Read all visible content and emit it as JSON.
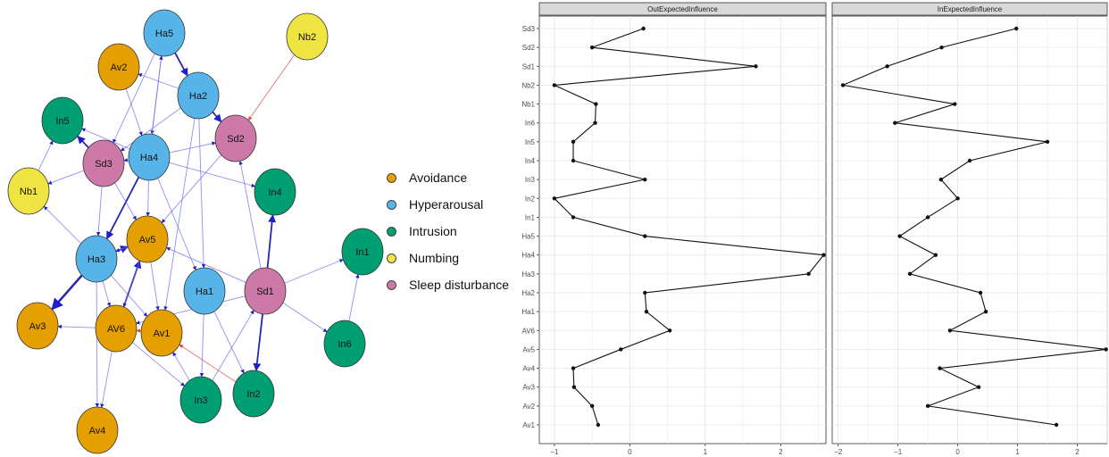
{
  "network": {
    "nodes": [
      {
        "id": "Ha5",
        "group": "Hyperarousal"
      },
      {
        "id": "Nb2",
        "group": "Numbing"
      },
      {
        "id": "Av2",
        "group": "Avoidance"
      },
      {
        "id": "Ha2",
        "group": "Hyperarousal"
      },
      {
        "id": "In5",
        "group": "Intrusion"
      },
      {
        "id": "Sd2",
        "group": "Sleep disturbance"
      },
      {
        "id": "Sd3",
        "group": "Sleep disturbance"
      },
      {
        "id": "Ha4",
        "group": "Hyperarousal"
      },
      {
        "id": "Nb1",
        "group": "Numbing"
      },
      {
        "id": "In4",
        "group": "Intrusion"
      },
      {
        "id": "Av5",
        "group": "Avoidance"
      },
      {
        "id": "Ha3",
        "group": "Hyperarousal"
      },
      {
        "id": "In1",
        "group": "Intrusion"
      },
      {
        "id": "Ha1",
        "group": "Hyperarousal"
      },
      {
        "id": "Sd1",
        "group": "Sleep disturbance"
      },
      {
        "id": "Av3",
        "group": "Avoidance"
      },
      {
        "id": "AV6",
        "group": "Avoidance"
      },
      {
        "id": "Av1",
        "group": "Avoidance"
      },
      {
        "id": "In6",
        "group": "Intrusion"
      },
      {
        "id": "In3",
        "group": "Intrusion"
      },
      {
        "id": "In2",
        "group": "Intrusion"
      },
      {
        "id": "Av4",
        "group": "Avoidance"
      }
    ],
    "edges": [
      {
        "from": "Nb2",
        "to": "Sd2",
        "w": 1,
        "neg": true
      },
      {
        "from": "In2",
        "to": "Av1",
        "w": 1,
        "neg": true
      },
      {
        "from": "Av1",
        "to": "AV6",
        "w": 1,
        "neg": true
      },
      {
        "from": "Ha5",
        "to": "Ha2",
        "w": 2
      },
      {
        "from": "Ha2",
        "to": "Sd2",
        "w": 2
      },
      {
        "from": "Ha5",
        "to": "Ha4",
        "w": 1
      },
      {
        "from": "Ha4",
        "to": "Ha5",
        "w": 1
      },
      {
        "from": "Ha5",
        "to": "Sd3",
        "w": 1
      },
      {
        "from": "Av2",
        "to": "Ha4",
        "w": 1
      },
      {
        "from": "Ha2",
        "to": "Av2",
        "w": 1
      },
      {
        "from": "Ha2",
        "to": "Sd3",
        "w": 1
      },
      {
        "from": "Ha2",
        "to": "Ha1",
        "w": 1
      },
      {
        "from": "Sd3",
        "to": "In5",
        "w": 2
      },
      {
        "from": "Ha4",
        "to": "In5",
        "w": 1
      },
      {
        "from": "Sd3",
        "to": "Nb1",
        "w": 1
      },
      {
        "from": "Nb1",
        "to": "In5",
        "w": 1
      },
      {
        "from": "Ha4",
        "to": "Sd3",
        "w": 1
      },
      {
        "from": "Ha4",
        "to": "Sd2",
        "w": 1
      },
      {
        "from": "Ha4",
        "to": "In4",
        "w": 1
      },
      {
        "from": "Ha4",
        "to": "Ha3",
        "w": 2
      },
      {
        "from": "Ha4",
        "to": "Av5",
        "w": 1
      },
      {
        "from": "Ha4",
        "to": "Ha1",
        "w": 1
      },
      {
        "from": "Sd2",
        "to": "Av5",
        "w": 1
      },
      {
        "from": "Sd1",
        "to": "Sd2",
        "w": 1
      },
      {
        "from": "Sd1",
        "to": "In4",
        "w": 2
      },
      {
        "from": "Sd1",
        "to": "In1",
        "w": 1
      },
      {
        "from": "Sd1",
        "to": "In6",
        "w": 1
      },
      {
        "from": "Sd1",
        "to": "In2",
        "w": 2
      },
      {
        "from": "Sd1",
        "to": "Av5",
        "w": 1
      },
      {
        "from": "Sd1",
        "to": "AV6",
        "w": 1
      },
      {
        "from": "In6",
        "to": "In1",
        "w": 1
      },
      {
        "from": "Ha3",
        "to": "Nb1",
        "w": 1
      },
      {
        "from": "Ha3",
        "to": "Av3",
        "w": 3
      },
      {
        "from": "Ha3",
        "to": "Av4",
        "w": 1
      },
      {
        "from": "Ha3",
        "to": "Av5",
        "w": 2
      },
      {
        "from": "Ha3",
        "to": "AV6",
        "w": 1
      },
      {
        "from": "Ha3",
        "to": "Av1",
        "w": 1
      },
      {
        "from": "Sd3",
        "to": "Ha3",
        "w": 1
      },
      {
        "from": "Sd3",
        "to": "Av5",
        "w": 1
      },
      {
        "from": "Av5",
        "to": "Ha3",
        "w": 1
      },
      {
        "from": "Av5",
        "to": "Av1",
        "w": 1
      },
      {
        "from": "AV6",
        "to": "Av5",
        "w": 2
      },
      {
        "from": "AV6",
        "to": "Av3",
        "w": 1
      },
      {
        "from": "AV6",
        "to": "Av4",
        "w": 1
      },
      {
        "from": "AV6",
        "to": "In3",
        "w": 1
      },
      {
        "from": "Ha1",
        "to": "In3",
        "w": 1
      },
      {
        "from": "Ha1",
        "to": "In2",
        "w": 1
      },
      {
        "from": "In3",
        "to": "Sd1",
        "w": 1
      },
      {
        "from": "In3",
        "to": "Av1",
        "w": 1
      },
      {
        "from": "Ha2",
        "to": "Av1",
        "w": 1
      },
      {
        "from": "Av5",
        "to": "AV6",
        "w": 1
      }
    ]
  },
  "legend": {
    "items": [
      {
        "label": "Avoidance",
        "color": "#e69f00"
      },
      {
        "label": "Hyperarousal",
        "color": "#56b4e9"
      },
      {
        "label": "Intrusion",
        "color": "#009e73"
      },
      {
        "label": "Numbing",
        "color": "#f0e442"
      },
      {
        "label": "Sleep disturbance",
        "color": "#cc79a7"
      }
    ]
  },
  "chart_data": {
    "type": "line",
    "categories": [
      "Sd3",
      "Sd2",
      "Sd1",
      "Nb2",
      "Nb1",
      "In6",
      "In5",
      "In4",
      "In3",
      "In2",
      "In1",
      "Ha5",
      "Ha4",
      "Ha3",
      "Ha2",
      "Ha1",
      "AV6",
      "Av5",
      "Av4",
      "Av3",
      "Av2",
      "Av1"
    ],
    "panels": [
      {
        "name": "OutExpectedInfluence",
        "xlim": [
          -1.2,
          2.6
        ],
        "xticks": [
          -1,
          0,
          1,
          2
        ],
        "values": [
          0.18,
          -0.5,
          1.67,
          -1.0,
          -0.45,
          -0.46,
          -0.75,
          -0.75,
          0.2,
          -1.0,
          -0.75,
          0.2,
          2.57,
          2.37,
          0.2,
          0.22,
          0.53,
          -0.12,
          -0.75,
          -0.74,
          -0.5,
          -0.42
        ]
      },
      {
        "name": "InExpectedInfluence",
        "xlim": [
          -2.1,
          2.5
        ],
        "xticks": [
          -2,
          -1,
          0,
          1,
          2
        ],
        "values": [
          0.98,
          -0.27,
          -1.18,
          -1.92,
          -0.05,
          -1.05,
          1.5,
          0.2,
          -0.28,
          0.0,
          -0.5,
          -0.97,
          -0.37,
          -0.8,
          0.38,
          0.47,
          -0.13,
          2.48,
          -0.3,
          0.35,
          -0.5,
          1.65
        ]
      }
    ]
  }
}
